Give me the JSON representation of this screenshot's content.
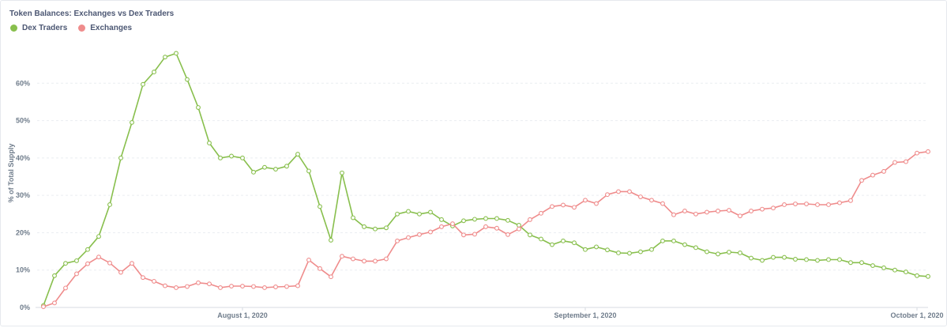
{
  "chart_data": {
    "type": "line",
    "title": "Token Balances: Exchanges vs Dex Traders",
    "ylabel": "% of Total Supply",
    "xlabel": "",
    "ylim": [
      0,
      70
    ],
    "yticks": [
      0,
      10,
      20,
      30,
      40,
      50,
      60
    ],
    "ytick_labels": [
      "0%",
      "10%",
      "20%",
      "30%",
      "40%",
      "50%",
      "60%"
    ],
    "x_start": "2020-07-14",
    "xticks": [
      {
        "date": "2020-08-01",
        "label": "August 1, 2020"
      },
      {
        "date": "2020-09-01",
        "label": "September 1, 2020"
      },
      {
        "date": "2020-10-01",
        "label": "October 1, 2020"
      }
    ],
    "grid": true,
    "legend": "top-left",
    "series": [
      {
        "name": "Dex Traders",
        "color": "#88bf4d",
        "values": [
          0.5,
          8.5,
          11.8,
          12.5,
          15.5,
          19,
          27.5,
          40,
          49.5,
          59.7,
          63,
          67,
          68,
          61,
          53.5,
          44,
          40,
          40.5,
          40,
          36.2,
          37.5,
          37,
          37.8,
          41,
          36.5,
          27,
          18,
          36,
          24,
          21.6,
          21,
          21.3,
          25,
          25.7,
          25,
          25.5,
          23.5,
          21.8,
          23.2,
          23.6,
          23.8,
          23.8,
          23.3,
          22,
          19.4,
          18.3,
          16.8,
          17.8,
          17.3,
          15.5,
          16.2,
          15.4,
          14.6,
          14.5,
          14.9,
          15.5,
          17.8,
          17.8,
          16.8,
          16,
          14.9,
          14.3,
          14.8,
          14.6,
          13.2,
          12.6,
          13.4,
          13.4,
          12.9,
          12.8,
          12.6,
          12.8,
          12.8,
          12,
          12,
          11.2,
          10.6,
          10,
          9.5,
          8.5,
          8.3
        ]
      },
      {
        "name": "Exchanges",
        "color": "#ef8c8c",
        "values": [
          0.2,
          1.2,
          5.2,
          9,
          11.7,
          13.5,
          11.9,
          9.4,
          11.8,
          8,
          7,
          5.8,
          5.3,
          5.6,
          6.6,
          6.3,
          5.3,
          5.7,
          5.7,
          5.6,
          5.3,
          5.5,
          5.6,
          5.8,
          12.7,
          10.4,
          8.2,
          13.7,
          13,
          12.4,
          12.4,
          13,
          17.8,
          18.7,
          19.5,
          20.2,
          21.6,
          22.4,
          19.4,
          19.6,
          21.6,
          21.2,
          19.5,
          21,
          23.5,
          25.2,
          27,
          27.4,
          26.8,
          28.7,
          27.8,
          30.2,
          31,
          31,
          29.6,
          28.7,
          27.8,
          24.8,
          25.8,
          25,
          25.5,
          25.8,
          26,
          24.5,
          25.8,
          26.3,
          26.6,
          27.5,
          27.7,
          27.7,
          27.5,
          27.5,
          28,
          28.6,
          34,
          35.4,
          36.4,
          38.8,
          39,
          41.3,
          41.7
        ]
      }
    ]
  }
}
